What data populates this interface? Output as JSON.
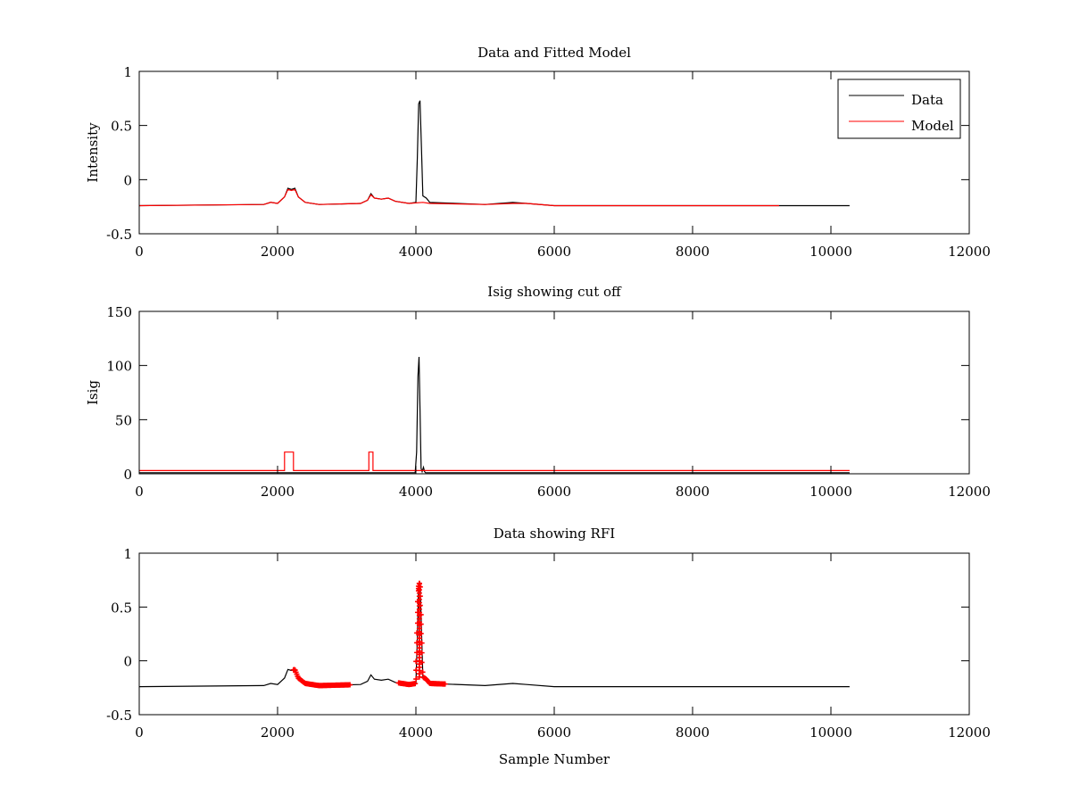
{
  "chart_data": [
    {
      "type": "line",
      "title": "Data and Fitted Model",
      "xlabel": "",
      "ylabel": "Intensity",
      "xlim": [
        0,
        12000
      ],
      "ylim": [
        -0.5,
        1
      ],
      "xticks": [
        "0",
        "2000",
        "4000",
        "6000",
        "8000",
        "10000",
        "12000"
      ],
      "yticks": [
        "-0.5",
        "0",
        "0.5",
        "1"
      ],
      "xtick_values": [
        0,
        2000,
        4000,
        6000,
        8000,
        10000,
        12000
      ],
      "ytick_values": [
        -0.5,
        0,
        0.5,
        1
      ],
      "legend": {
        "placement": "top-right",
        "entries": [
          "Data",
          "Model"
        ]
      },
      "series": [
        {
          "name": "Data",
          "color": "#000000",
          "x": [
            0,
            1800,
            1900,
            2000,
            2100,
            2150,
            2200,
            2250,
            2300,
            2400,
            2600,
            3200,
            3300,
            3350,
            3400,
            3500,
            3600,
            3700,
            3900,
            4000,
            4020,
            4040,
            4060,
            4080,
            4100,
            4150,
            4200,
            5000,
            5400,
            5600,
            6000,
            10270
          ],
          "y": [
            -0.24,
            -0.23,
            -0.21,
            -0.22,
            -0.16,
            -0.08,
            -0.09,
            -0.08,
            -0.16,
            -0.21,
            -0.23,
            -0.22,
            -0.19,
            -0.13,
            -0.17,
            -0.18,
            -0.17,
            -0.2,
            -0.22,
            -0.21,
            0.2,
            0.7,
            0.73,
            0.3,
            -0.15,
            -0.17,
            -0.21,
            -0.23,
            -0.21,
            -0.22,
            -0.24,
            -0.24
          ]
        },
        {
          "name": "Model",
          "color": "#ff0000",
          "x": [
            0,
            1800,
            1900,
            2000,
            2100,
            2150,
            2200,
            2250,
            2300,
            2400,
            2600,
            3200,
            3300,
            3350,
            3400,
            3500,
            3600,
            3700,
            3900,
            4100,
            4200,
            5000,
            5400,
            5600,
            6000,
            9250
          ],
          "y": [
            -0.24,
            -0.23,
            -0.21,
            -0.22,
            -0.16,
            -0.09,
            -0.1,
            -0.09,
            -0.16,
            -0.21,
            -0.23,
            -0.22,
            -0.19,
            -0.14,
            -0.17,
            -0.18,
            -0.17,
            -0.2,
            -0.22,
            -0.21,
            -0.22,
            -0.23,
            -0.22,
            -0.22,
            -0.24,
            -0.24
          ]
        }
      ]
    },
    {
      "type": "line",
      "title": "Isig showing cut off",
      "xlabel": "",
      "ylabel": "Isig",
      "xlim": [
        0,
        12000
      ],
      "ylim": [
        0,
        150
      ],
      "xticks": [
        "0",
        "2000",
        "4000",
        "6000",
        "8000",
        "10000",
        "12000"
      ],
      "yticks": [
        "0",
        "50",
        "100",
        "150"
      ],
      "xtick_values": [
        0,
        2000,
        4000,
        6000,
        8000,
        10000,
        12000
      ],
      "ytick_values": [
        0,
        50,
        100,
        150
      ],
      "series": [
        {
          "name": "Isig",
          "color": "#000000",
          "x": [
            0,
            3990,
            4010,
            4030,
            4045,
            4060,
            4075,
            4090,
            4110,
            4125,
            4140,
            10270
          ],
          "y": [
            1,
            1,
            20,
            90,
            108,
            60,
            5,
            2,
            6,
            2,
            1,
            1
          ]
        },
        {
          "name": "Cut off",
          "color": "#ff0000",
          "x": [
            0,
            2100,
            2100,
            2230,
            2230,
            3320,
            3320,
            3380,
            3380,
            10270
          ],
          "y": [
            3,
            3,
            20,
            20,
            3,
            3,
            20,
            20,
            3,
            3
          ]
        }
      ]
    },
    {
      "type": "line",
      "title": "Data showing RFI",
      "xlabel": "Sample Number",
      "ylabel": "",
      "xlim": [
        0,
        12000
      ],
      "ylim": [
        -0.5,
        1
      ],
      "xticks": [
        "0",
        "2000",
        "4000",
        "6000",
        "8000",
        "10000",
        "12000"
      ],
      "yticks": [
        "-0.5",
        "0",
        "0.5",
        "1"
      ],
      "xtick_values": [
        0,
        2000,
        4000,
        6000,
        8000,
        10000,
        12000
      ],
      "ytick_values": [
        -0.5,
        0,
        0.5,
        1
      ],
      "series": [
        {
          "name": "Data",
          "color": "#000000",
          "source": "same as Data series of first plot"
        },
        {
          "name": "RFI",
          "color": "#ff0000",
          "marker": "+",
          "x_ranges": [
            [
              2230,
              3050
            ],
            [
              3750,
              4430
            ]
          ]
        }
      ]
    }
  ]
}
